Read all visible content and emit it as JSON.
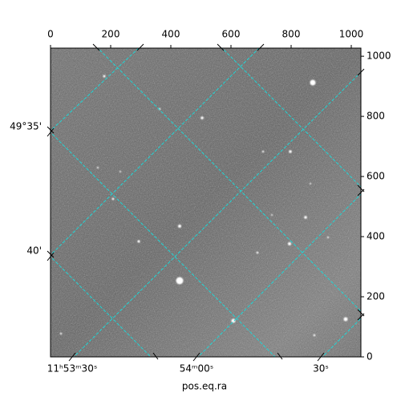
{
  "chart_data": {
    "type": "image",
    "xlabel": "pos.eq.ra",
    "xlim": [
      0,
      1032
    ],
    "xticks": [
      0,
      200,
      400,
      600,
      800,
      1000
    ],
    "ylim": [
      0,
      1027
    ],
    "yticks": [
      0,
      200,
      400,
      600,
      800,
      1000
    ],
    "world_x_ticks": [
      "11ʰ53ᵐ30ˢ",
      "54ᵐ00ˢ",
      "30ˢ"
    ],
    "world_y_ticks": [
      "49°35'",
      "40'"
    ],
    "grid": true,
    "grid_color": "#1fd6d6"
  }
}
